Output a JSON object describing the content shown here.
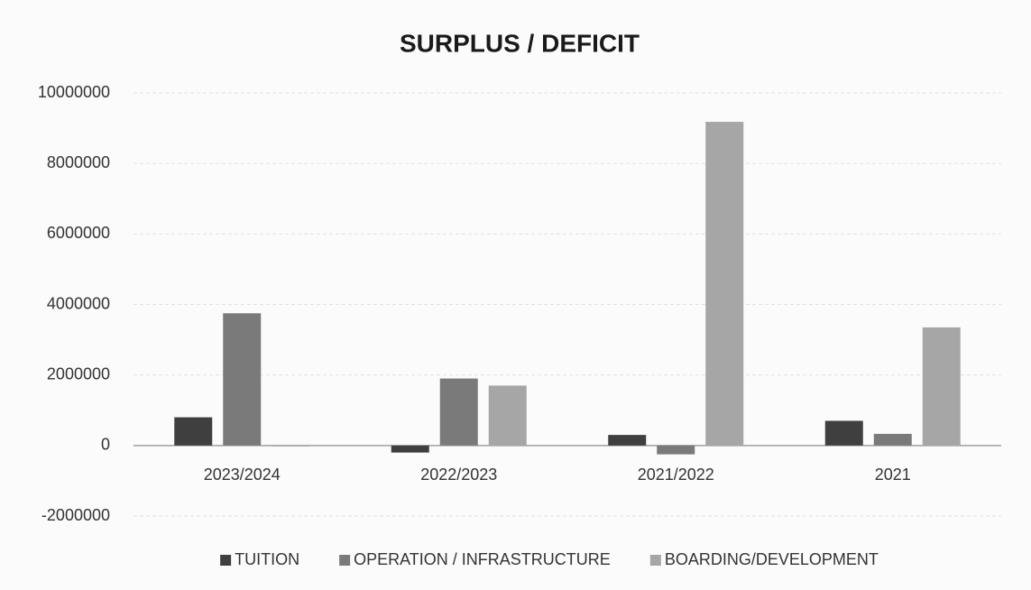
{
  "chart_data": {
    "type": "bar",
    "title": "SURPLUS / DEFICIT",
    "categories": [
      "2023/2024",
      "2022/2023",
      "2021/2022",
      "2021"
    ],
    "series": [
      {
        "name": "TUITION",
        "color": "#3f3f3f",
        "values": [
          800000,
          -200000,
          300000,
          700000
        ]
      },
      {
        "name": "OPERATION / INFRASTRUCTURE",
        "color": "#7a7a7a",
        "values": [
          3750000,
          1900000,
          -250000,
          330000
        ]
      },
      {
        "name": "BOARDING/DEVELOPMENT",
        "color": "#a6a6a6",
        "values": [
          -20000,
          1700000,
          9180000,
          3350000
        ]
      }
    ],
    "ylim": [
      -2000000,
      10000000
    ],
    "yticks": [
      -2000000,
      0,
      2000000,
      4000000,
      6000000,
      8000000,
      10000000
    ],
    "grid": true,
    "legend": "bottom"
  }
}
